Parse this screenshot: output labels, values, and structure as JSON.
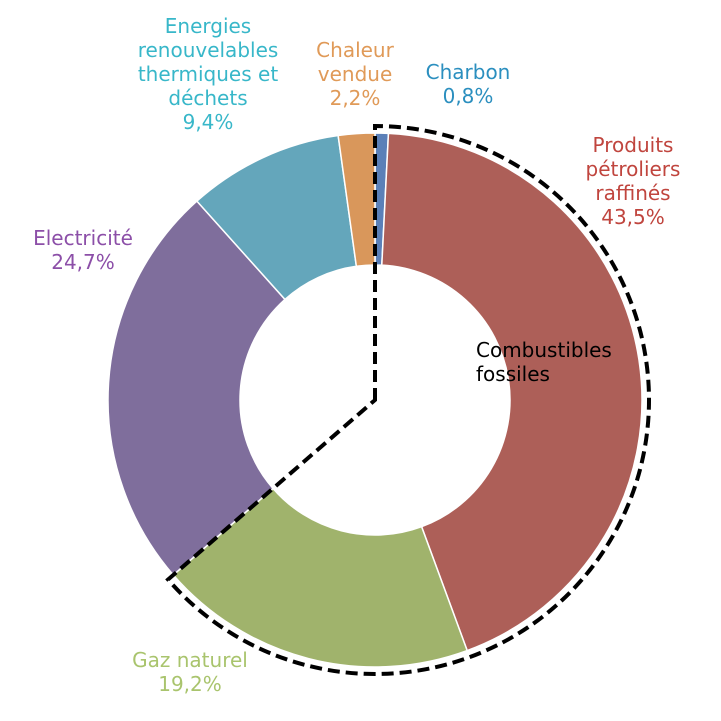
{
  "chart_data": {
    "type": "pie",
    "categories": [
      "Charbon",
      "Produits pétroliers raffinés",
      "Gaz naturel",
      "Electricité",
      "Energies renouvelables thermiques et déchets",
      "Chaleur vendue"
    ],
    "values": [
      0.8,
      43.5,
      19.2,
      24.7,
      9.4,
      2.2
    ],
    "value_labels": [
      "0,8%",
      "43,5%",
      "19,2%",
      "24,7%",
      "9,4%",
      "2,2%"
    ],
    "colors": [
      "#5b80b8",
      "#ad5f58",
      "#a0b36c",
      "#7f6e9c",
      "#64a6bb",
      "#d9975b"
    ],
    "label_colors": [
      "#2b8fbf",
      "#c0453e",
      "#a9c46d",
      "#8c4fa8",
      "#38b7c9",
      "#e09a58"
    ],
    "annotation": "Combustibles fossiles"
  }
}
